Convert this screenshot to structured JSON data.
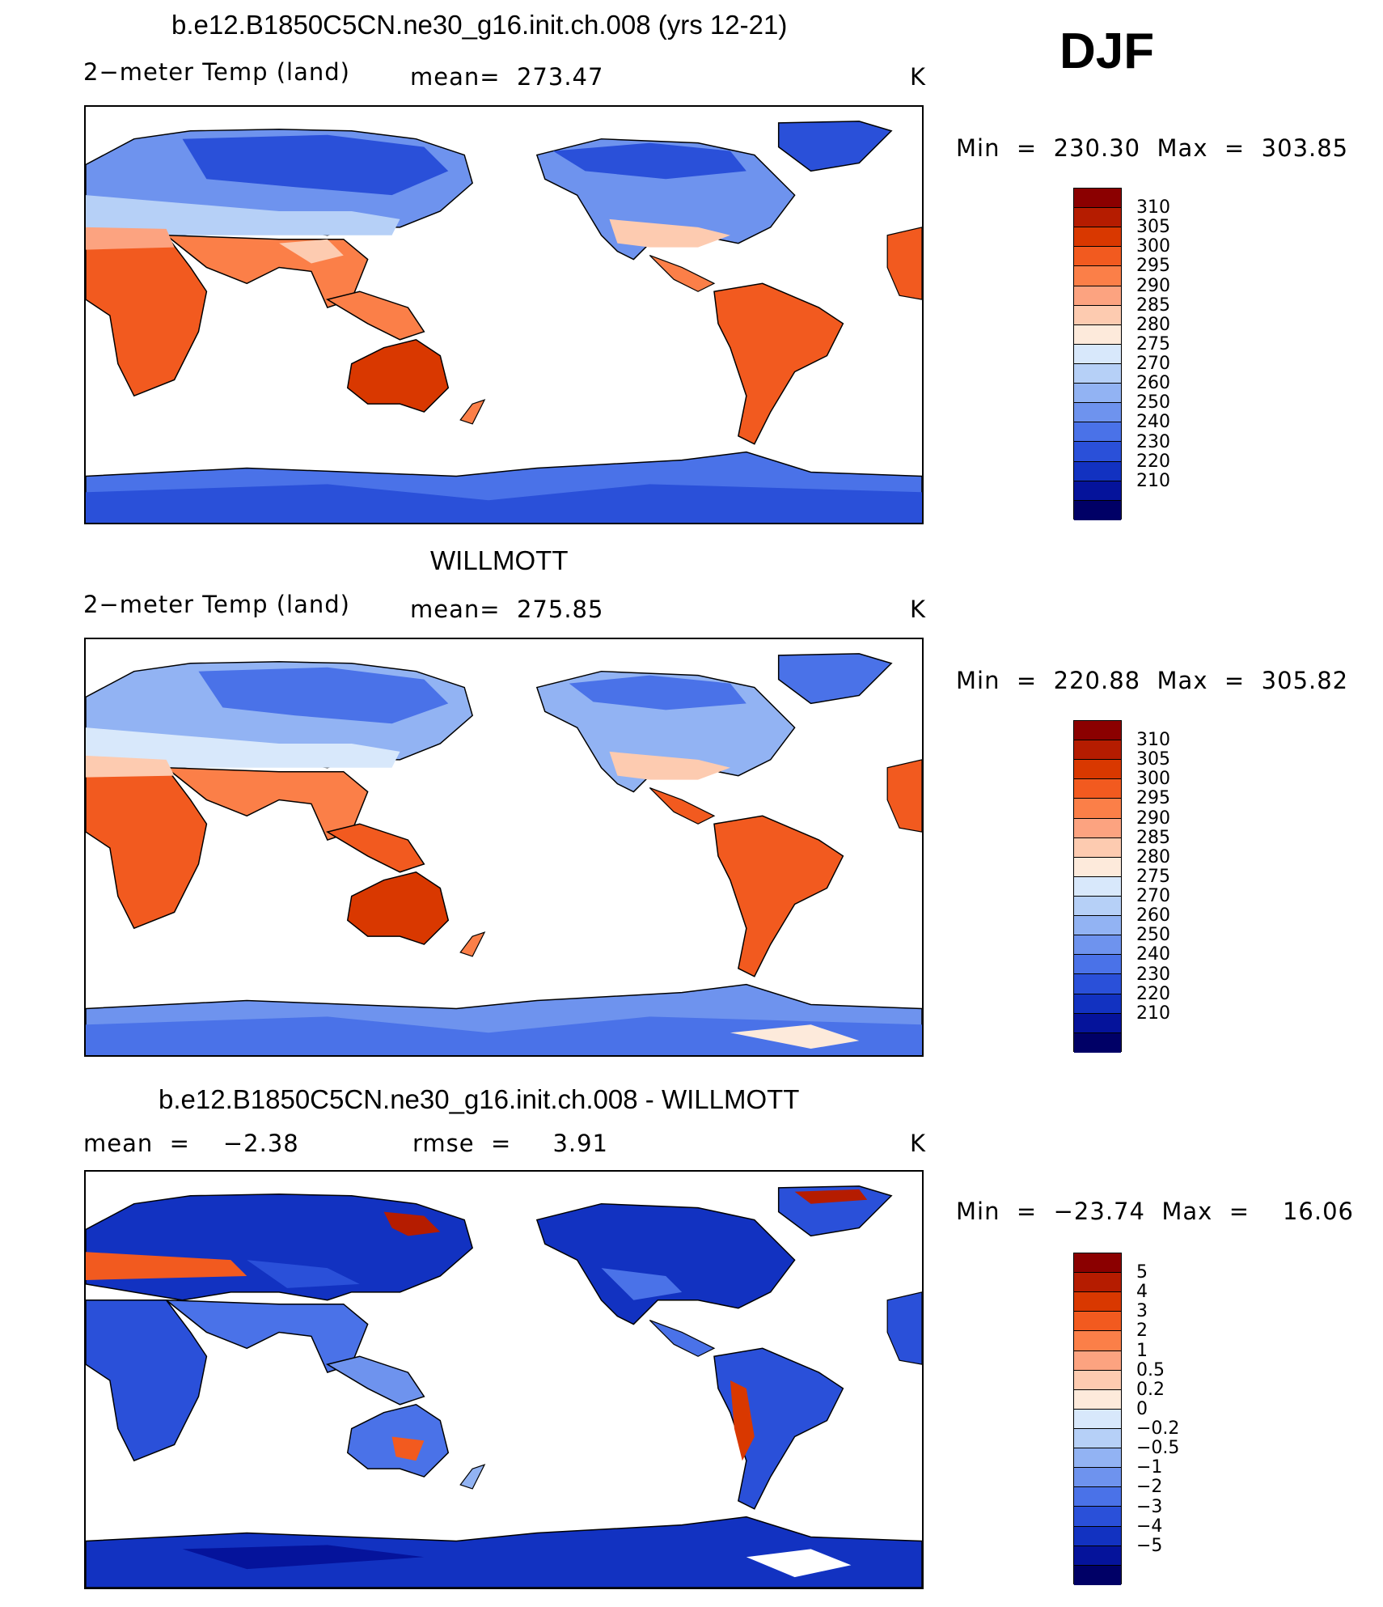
{
  "season": "DJF",
  "panels": [
    {
      "title": "b.e12.B1850C5CN.ne30_g16.init.ch.008 (yrs 12-21)",
      "left_text": "2−meter Temp (land)",
      "mid_text": "mean=  273.47",
      "units": "K",
      "minmax": "Min  =  230.30  Max  =  303.85"
    },
    {
      "title": "WILLMOTT",
      "left_text": "2−meter Temp (land)",
      "mid_text": "mean=  275.85",
      "units": "K",
      "minmax": "Min  =  220.88  Max  =  305.82"
    },
    {
      "title": "b.e12.B1850C5CN.ne30_g16.init.ch.008 - WILLMOTT",
      "left_text": "mean  =    −2.38",
      "mid_text": "rmse  =     3.91",
      "units": "K",
      "minmax": "Min  =  −23.74  Max  =    16.06"
    }
  ],
  "colorbars": {
    "temp": {
      "colors": [
        "#8b0000",
        "#b51c00",
        "#d93800",
        "#f25a1f",
        "#fb7f48",
        "#fca380",
        "#fdcbb0",
        "#fdeadb",
        "#d8e8fb",
        "#b6d0f7",
        "#92b3f3",
        "#6e93ee",
        "#4a72e8",
        "#2a50d9",
        "#1232c1",
        "#05139b",
        "#000066"
      ],
      "labels": [
        "310",
        "305",
        "300",
        "295",
        "290",
        "285",
        "280",
        "275",
        "270",
        "260",
        "250",
        "240",
        "230",
        "220",
        "210"
      ]
    },
    "diff": {
      "colors": [
        "#8b0000",
        "#b51c00",
        "#d93800",
        "#f25a1f",
        "#fb7f48",
        "#fca380",
        "#fdcbb0",
        "#fdeadb",
        "#d8e8fb",
        "#b6d0f7",
        "#92b3f3",
        "#6e93ee",
        "#4a72e8",
        "#2a50d9",
        "#1232c1",
        "#05139b",
        "#000066"
      ],
      "labels": [
        "5",
        "4",
        "3",
        "2",
        "1",
        "0.5",
        "0.2",
        "0",
        "−0.2",
        "−0.5",
        "−1",
        "−2",
        "−3",
        "−4",
        "−5"
      ]
    }
  }
}
